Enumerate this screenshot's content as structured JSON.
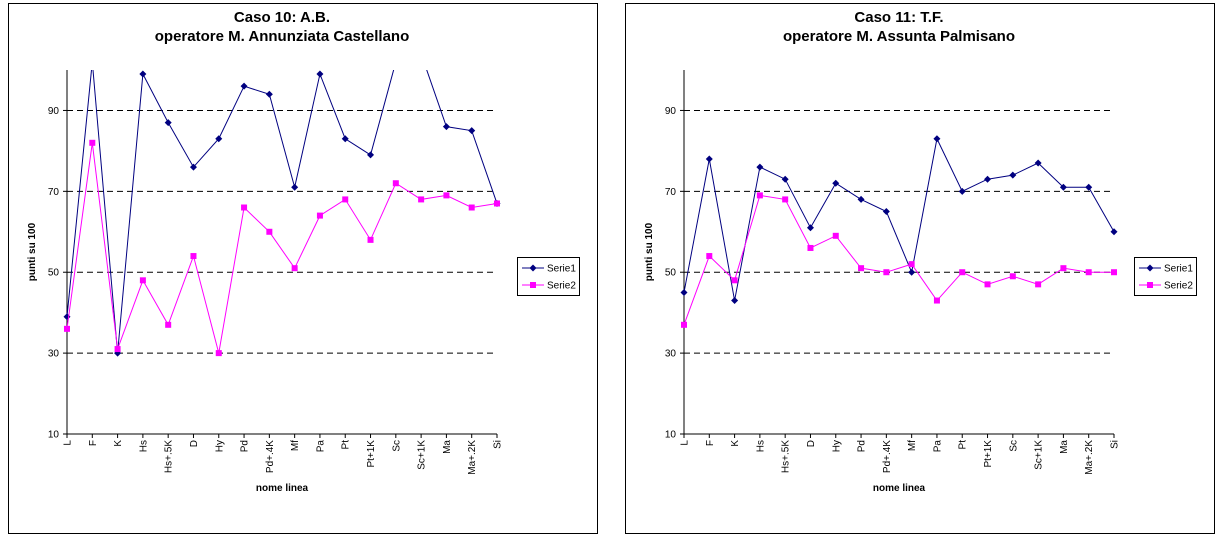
{
  "chart_data": [
    {
      "type": "line",
      "title": "Caso 10: A.B.",
      "subtitle": "operatore M. Annunziata Castellano",
      "xlabel": "nome linea",
      "ylabel": "punti su 100",
      "ylim": [
        10,
        100
      ],
      "yticks": [
        10,
        30,
        50,
        70,
        90
      ],
      "grid": "horizontal-dashed",
      "legend_position": "right",
      "categories": [
        "L",
        "F",
        "K",
        "Hs",
        "Hs+.5K",
        "D",
        "Hy",
        "Pd",
        "Pd+.4K",
        "Mf",
        "Pa",
        "Pt",
        "Pt+1K",
        "Sc",
        "Sc+1K",
        "Ma",
        "Ma+.2K",
        "Si"
      ],
      "series": [
        {
          "name": "Serie1",
          "color": "#000080",
          "marker": "diamond",
          "values": [
            39,
            102,
            30,
            99,
            87,
            76,
            83,
            96,
            94,
            71,
            99,
            83,
            79,
            102,
            104,
            86,
            85,
            67
          ]
        },
        {
          "name": "Serie2",
          "color": "#ff00ff",
          "marker": "square",
          "values": [
            36,
            82,
            31,
            48,
            37,
            54,
            30,
            66,
            60,
            51,
            64,
            68,
            58,
            72,
            68,
            69,
            66,
            67
          ]
        }
      ]
    },
    {
      "type": "line",
      "title": "Caso 11: T.F.",
      "subtitle": "operatore M. Assunta Palmisano",
      "xlabel": "nome linea",
      "ylabel": "punti su 100",
      "ylim": [
        10,
        100
      ],
      "yticks": [
        10,
        30,
        50,
        70,
        90
      ],
      "grid": "horizontal-dashed",
      "legend_position": "right",
      "categories": [
        "L",
        "F",
        "K",
        "Hs",
        "Hs+.5K",
        "D",
        "Hy",
        "Pd",
        "Pd+.4K",
        "Mf",
        "Pa",
        "Pt",
        "Pt+1K",
        "Sc",
        "Sc+1K",
        "Ma",
        "Ma+.2K",
        "Si"
      ],
      "series": [
        {
          "name": "Serie1",
          "color": "#000080",
          "marker": "diamond",
          "values": [
            45,
            78,
            43,
            76,
            73,
            61,
            72,
            68,
            65,
            50,
            83,
            70,
            73,
            74,
            77,
            71,
            71,
            60
          ]
        },
        {
          "name": "Serie2",
          "color": "#ff00ff",
          "marker": "square",
          "values": [
            37,
            54,
            48,
            69,
            68,
            56,
            59,
            51,
            50,
            52,
            43,
            50,
            47,
            49,
            47,
            51,
            50,
            50
          ]
        }
      ]
    }
  ]
}
